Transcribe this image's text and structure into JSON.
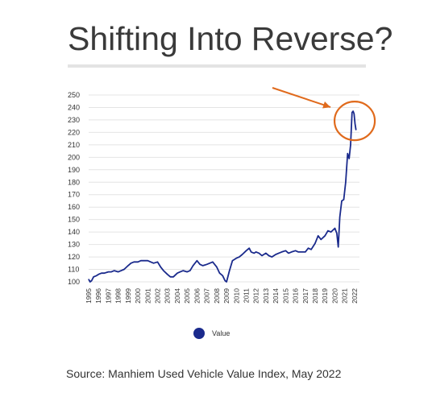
{
  "header": {
    "title": "Shifting Into Reverse?"
  },
  "footer": {
    "source": "Source: Manhiem Used Vehicle Value Index, May 2022"
  },
  "colors": {
    "series": "#1a2a8c",
    "annotation": "#e06a1c",
    "grid": "#e4e4e4",
    "title_rule": "#e3e3e3"
  },
  "chart_data": {
    "type": "line",
    "title": "",
    "xlabel": "",
    "ylabel": "",
    "ylim": [
      100,
      250
    ],
    "yticks": [
      100,
      110,
      120,
      130,
      140,
      150,
      160,
      170,
      180,
      190,
      200,
      210,
      220,
      230,
      240,
      250
    ],
    "xlim": [
      1995,
      2022.5
    ],
    "xticks": [
      "1995",
      "1996",
      "1997",
      "1998",
      "1999",
      "2000",
      "2001",
      "2002",
      "2003",
      "2004",
      "2005",
      "2006",
      "2007",
      "2008",
      "2009",
      "2010",
      "2011",
      "2012",
      "2013",
      "2014",
      "2015",
      "2016",
      "2017",
      "2018",
      "2019",
      "2020",
      "2021",
      "2022"
    ],
    "grid": true,
    "legend": {
      "position": "bottom",
      "entries": [
        "Value"
      ]
    },
    "annotations": [
      {
        "type": "arrow",
        "target": "peak"
      },
      {
        "type": "circle",
        "target": "peak"
      }
    ],
    "series": [
      {
        "name": "Value",
        "points": [
          [
            1995.0,
            102
          ],
          [
            1995.15,
            100
          ],
          [
            1995.3,
            101
          ],
          [
            1995.5,
            104
          ],
          [
            1995.8,
            105
          ],
          [
            1996.0,
            106
          ],
          [
            1996.3,
            107
          ],
          [
            1996.6,
            107
          ],
          [
            1997.0,
            108
          ],
          [
            1997.3,
            108
          ],
          [
            1997.6,
            109
          ],
          [
            1998.0,
            108
          ],
          [
            1998.3,
            109
          ],
          [
            1998.6,
            110
          ],
          [
            1999.0,
            113
          ],
          [
            1999.3,
            115
          ],
          [
            1999.6,
            116
          ],
          [
            2000.0,
            116
          ],
          [
            2000.3,
            117
          ],
          [
            2000.6,
            117
          ],
          [
            2001.0,
            117
          ],
          [
            2001.3,
            116
          ],
          [
            2001.6,
            115
          ],
          [
            2002.0,
            116
          ],
          [
            2002.3,
            112
          ],
          [
            2002.6,
            109
          ],
          [
            2003.0,
            106
          ],
          [
            2003.3,
            104
          ],
          [
            2003.6,
            104
          ],
          [
            2004.0,
            107
          ],
          [
            2004.3,
            108
          ],
          [
            2004.6,
            109
          ],
          [
            2005.0,
            108
          ],
          [
            2005.3,
            109
          ],
          [
            2005.6,
            113
          ],
          [
            2006.0,
            117
          ],
          [
            2006.3,
            114
          ],
          [
            2006.6,
            113
          ],
          [
            2007.0,
            114
          ],
          [
            2007.3,
            115
          ],
          [
            2007.6,
            116
          ],
          [
            2008.0,
            112
          ],
          [
            2008.3,
            107
          ],
          [
            2008.6,
            105
          ],
          [
            2008.85,
            101
          ],
          [
            2009.0,
            100
          ],
          [
            2009.3,
            109
          ],
          [
            2009.6,
            117
          ],
          [
            2010.0,
            119
          ],
          [
            2010.3,
            120
          ],
          [
            2010.6,
            122
          ],
          [
            2011.0,
            125
          ],
          [
            2011.3,
            127
          ],
          [
            2011.5,
            124
          ],
          [
            2011.8,
            123
          ],
          [
            2012.0,
            124
          ],
          [
            2012.3,
            123
          ],
          [
            2012.6,
            121
          ],
          [
            2013.0,
            123
          ],
          [
            2013.3,
            121
          ],
          [
            2013.6,
            120
          ],
          [
            2014.0,
            122
          ],
          [
            2014.3,
            123
          ],
          [
            2014.6,
            124
          ],
          [
            2015.0,
            125
          ],
          [
            2015.3,
            123
          ],
          [
            2015.6,
            124
          ],
          [
            2016.0,
            125
          ],
          [
            2016.3,
            124
          ],
          [
            2016.6,
            124
          ],
          [
            2017.0,
            124
          ],
          [
            2017.3,
            127
          ],
          [
            2017.6,
            126
          ],
          [
            2018.0,
            131
          ],
          [
            2018.3,
            137
          ],
          [
            2018.6,
            134
          ],
          [
            2019.0,
            137
          ],
          [
            2019.3,
            141
          ],
          [
            2019.6,
            140
          ],
          [
            2020.0,
            143
          ],
          [
            2020.2,
            139
          ],
          [
            2020.35,
            128
          ],
          [
            2020.5,
            152
          ],
          [
            2020.7,
            165
          ],
          [
            2020.9,
            166
          ],
          [
            2021.1,
            180
          ],
          [
            2021.3,
            203
          ],
          [
            2021.45,
            199
          ],
          [
            2021.6,
            210
          ],
          [
            2021.75,
            236
          ],
          [
            2021.85,
            237
          ],
          [
            2021.95,
            235
          ],
          [
            2022.05,
            227
          ],
          [
            2022.15,
            222
          ]
        ]
      }
    ]
  }
}
